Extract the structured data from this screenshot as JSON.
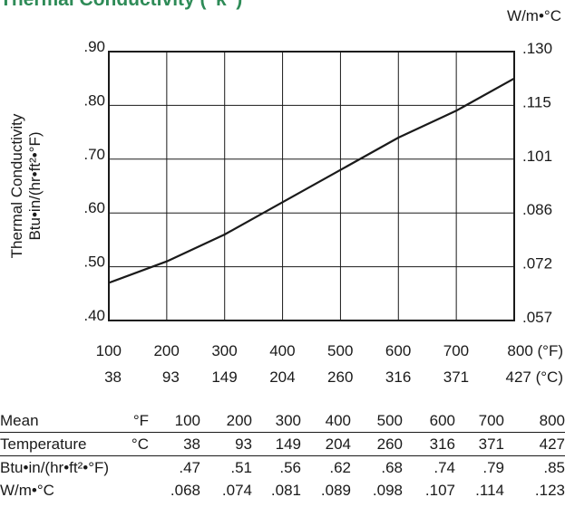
{
  "title": "Thermal Conductivity (“k”)",
  "right_axis_unit": "W/m•°C",
  "chart_data": {
    "type": "line",
    "title": "Thermal Conductivity (“k”)",
    "ylabel": [
      "Thermal Conductivity",
      "Btu•in/(hr•ft²•°F)"
    ],
    "ylim": [
      0.4,
      0.9
    ],
    "y_ticks": [
      ".90",
      ".80",
      ".70",
      ".60",
      ".50",
      ".40"
    ],
    "y_tick_values": [
      0.9,
      0.8,
      0.7,
      0.6,
      0.5,
      0.4
    ],
    "y2label": "W/m•°C",
    "y2_ticks": [
      ".130",
      ".115",
      ".101",
      ".086",
      ".072",
      ".057"
    ],
    "xlim": [
      100,
      800
    ],
    "x_ticks_f": [
      "100",
      "200",
      "300",
      "400",
      "500",
      "600",
      "700",
      "800 (°F)"
    ],
    "x_ticks_c": [
      "38",
      "93",
      "149",
      "204",
      "260",
      "316",
      "371",
      "427 (°C)"
    ],
    "x_tick_values": [
      100,
      200,
      300,
      400,
      500,
      600,
      700,
      800
    ],
    "grid": true,
    "series": [
      {
        "x": [
          100,
          200,
          300,
          400,
          500,
          600,
          700,
          800
        ],
        "values": [
          0.47,
          0.51,
          0.56,
          0.62,
          0.68,
          0.74,
          0.79,
          0.85
        ]
      }
    ]
  },
  "table": {
    "rows": [
      [
        "Mean",
        "°F",
        "100",
        "200",
        "300",
        "400",
        "500",
        "600",
        "700",
        "800"
      ],
      [
        "Temperature",
        "°C",
        "38",
        "93",
        "149",
        "204",
        "260",
        "316",
        "371",
        "427"
      ],
      [
        "Btu•in/(hr•ft²•°F)",
        "",
        ".47",
        ".51",
        ".56",
        ".62",
        ".68",
        ".74",
        ".79",
        ".85"
      ],
      [
        "W/m•°C",
        "",
        ".068",
        ".074",
        ".081",
        ".089",
        ".098",
        ".107",
        ".114",
        ".123"
      ]
    ]
  }
}
